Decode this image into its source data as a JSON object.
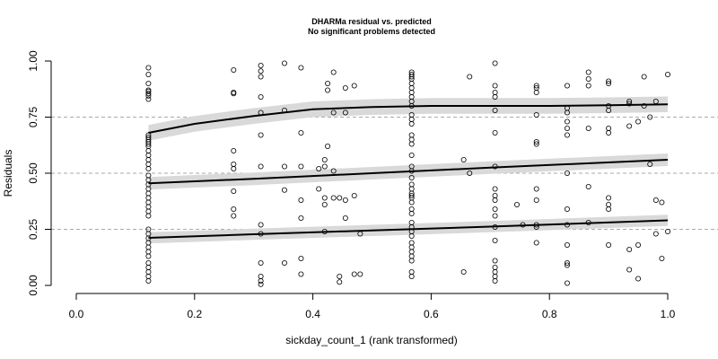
{
  "chart_data": {
    "type": "scatter",
    "title": "DHARMa residual vs. predicted",
    "subtitle": "No significant problems detected",
    "xlabel": "sickday_count_1 (rank transformed)",
    "ylabel": "Residuals",
    "xlim": [
      0.0,
      1.0
    ],
    "ylim": [
      0.0,
      1.0
    ],
    "x_ticks": [
      {
        "value": 0.0,
        "label": "0.0"
      },
      {
        "value": 0.2,
        "label": "0.2"
      },
      {
        "value": 0.4,
        "label": "0.4"
      },
      {
        "value": 0.6,
        "label": "0.6"
      },
      {
        "value": 0.8,
        "label": "0.8"
      },
      {
        "value": 1.0,
        "label": "1.0"
      }
    ],
    "y_ticks": [
      {
        "value": 0.0,
        "label": "0.00"
      },
      {
        "value": 0.25,
        "label": "0.25"
      },
      {
        "value": 0.5,
        "label": "0.50"
      },
      {
        "value": 0.75,
        "label": "0.75"
      },
      {
        "value": 1.0,
        "label": "1.00"
      }
    ],
    "reference_lines_y": [
      0.25,
      0.5,
      0.75
    ],
    "colors": {
      "points": "#000000",
      "outlier": "#e0506e",
      "band": "#d9d9d9",
      "reference": "#aaaaaa"
    },
    "outliers": [
      {
        "x": 0.266,
        "y": 1.0
      }
    ],
    "quantile_lines": [
      {
        "quantile": 0.75,
        "points": [
          [
            0.122,
            0.68
          ],
          [
            0.2,
            0.72
          ],
          [
            0.3,
            0.755
          ],
          [
            0.4,
            0.785
          ],
          [
            0.5,
            0.795
          ],
          [
            0.6,
            0.8
          ],
          [
            0.7,
            0.8
          ],
          [
            0.8,
            0.8
          ],
          [
            0.9,
            0.803
          ],
          [
            1.0,
            0.807
          ]
        ],
        "band": 0.035
      },
      {
        "quantile": 0.5,
        "points": [
          [
            0.122,
            0.455
          ],
          [
            0.3,
            0.475
          ],
          [
            0.5,
            0.5
          ],
          [
            0.7,
            0.525
          ],
          [
            1.0,
            0.56
          ]
        ],
        "band": 0.028
      },
      {
        "quantile": 0.25,
        "points": [
          [
            0.122,
            0.212
          ],
          [
            0.3,
            0.228
          ],
          [
            0.5,
            0.245
          ],
          [
            0.7,
            0.262
          ],
          [
            1.0,
            0.29
          ]
        ],
        "band": 0.025
      }
    ],
    "points": [
      [
        0.122,
        0.97
      ],
      [
        0.122,
        0.94
      ],
      [
        0.122,
        0.9
      ],
      [
        0.122,
        0.87
      ],
      [
        0.122,
        0.865
      ],
      [
        0.122,
        0.855
      ],
      [
        0.122,
        0.845
      ],
      [
        0.122,
        0.83
      ],
      [
        0.122,
        0.67
      ],
      [
        0.122,
        0.66
      ],
      [
        0.122,
        0.65
      ],
      [
        0.122,
        0.64
      ],
      [
        0.122,
        0.63
      ],
      [
        0.122,
        0.62
      ],
      [
        0.122,
        0.6
      ],
      [
        0.122,
        0.58
      ],
      [
        0.122,
        0.56
      ],
      [
        0.122,
        0.54
      ],
      [
        0.122,
        0.52
      ],
      [
        0.122,
        0.49
      ],
      [
        0.122,
        0.47
      ],
      [
        0.122,
        0.45
      ],
      [
        0.122,
        0.43
      ],
      [
        0.122,
        0.41
      ],
      [
        0.122,
        0.39
      ],
      [
        0.122,
        0.37
      ],
      [
        0.122,
        0.35
      ],
      [
        0.122,
        0.33
      ],
      [
        0.122,
        0.31
      ],
      [
        0.122,
        0.25
      ],
      [
        0.122,
        0.23
      ],
      [
        0.122,
        0.21
      ],
      [
        0.122,
        0.19
      ],
      [
        0.122,
        0.17
      ],
      [
        0.122,
        0.15
      ],
      [
        0.122,
        0.13
      ],
      [
        0.122,
        0.1
      ],
      [
        0.122,
        0.08
      ],
      [
        0.122,
        0.06
      ],
      [
        0.122,
        0.04
      ],
      [
        0.122,
        0.02
      ],
      [
        0.266,
        0.96
      ],
      [
        0.266,
        0.86
      ],
      [
        0.266,
        0.855
      ],
      [
        0.266,
        0.6
      ],
      [
        0.266,
        0.54
      ],
      [
        0.266,
        0.52
      ],
      [
        0.266,
        0.42
      ],
      [
        0.266,
        0.34
      ],
      [
        0.266,
        0.31
      ],
      [
        0.312,
        0.98
      ],
      [
        0.312,
        0.955
      ],
      [
        0.312,
        0.93
      ],
      [
        0.312,
        0.84
      ],
      [
        0.312,
        0.77
      ],
      [
        0.312,
        0.67
      ],
      [
        0.312,
        0.53
      ],
      [
        0.312,
        0.27
      ],
      [
        0.312,
        0.23
      ],
      [
        0.312,
        0.1
      ],
      [
        0.312,
        0.04
      ],
      [
        0.312,
        0.02
      ],
      [
        0.312,
        0.005
      ],
      [
        0.352,
        0.99
      ],
      [
        0.352,
        0.78
      ],
      [
        0.352,
        0.53
      ],
      [
        0.352,
        0.425
      ],
      [
        0.352,
        0.1
      ],
      [
        0.38,
        0.97
      ],
      [
        0.38,
        0.68
      ],
      [
        0.38,
        0.53
      ],
      [
        0.38,
        0.38
      ],
      [
        0.38,
        0.3
      ],
      [
        0.38,
        0.12
      ],
      [
        0.38,
        0.05
      ],
      [
        0.41,
        0.43
      ],
      [
        0.41,
        0.52
      ],
      [
        0.42,
        0.56
      ],
      [
        0.42,
        0.53
      ],
      [
        0.42,
        0.39
      ],
      [
        0.42,
        0.36
      ],
      [
        0.42,
        0.24
      ],
      [
        0.425,
        0.9
      ],
      [
        0.425,
        0.87
      ],
      [
        0.425,
        0.62
      ],
      [
        0.435,
        0.95
      ],
      [
        0.435,
        0.77
      ],
      [
        0.435,
        0.51
      ],
      [
        0.435,
        0.39
      ],
      [
        0.445,
        0.39
      ],
      [
        0.445,
        0.04
      ],
      [
        0.445,
        0.015
      ],
      [
        0.455,
        0.88
      ],
      [
        0.455,
        0.77
      ],
      [
        0.455,
        0.38
      ],
      [
        0.455,
        0.3
      ],
      [
        0.47,
        0.89
      ],
      [
        0.47,
        0.4
      ],
      [
        0.47,
        0.05
      ],
      [
        0.48,
        0.05
      ],
      [
        0.48,
        0.23
      ],
      [
        0.567,
        0.95
      ],
      [
        0.567,
        0.94
      ],
      [
        0.567,
        0.93
      ],
      [
        0.567,
        0.92
      ],
      [
        0.567,
        0.9
      ],
      [
        0.567,
        0.88
      ],
      [
        0.567,
        0.86
      ],
      [
        0.567,
        0.84
      ],
      [
        0.567,
        0.82
      ],
      [
        0.567,
        0.8
      ],
      [
        0.567,
        0.76
      ],
      [
        0.567,
        0.74
      ],
      [
        0.567,
        0.72
      ],
      [
        0.567,
        0.67
      ],
      [
        0.567,
        0.65
      ],
      [
        0.567,
        0.63
      ],
      [
        0.567,
        0.58
      ],
      [
        0.567,
        0.53
      ],
      [
        0.567,
        0.51
      ],
      [
        0.567,
        0.48
      ],
      [
        0.567,
        0.45
      ],
      [
        0.567,
        0.43
      ],
      [
        0.567,
        0.41
      ],
      [
        0.567,
        0.4
      ],
      [
        0.567,
        0.39
      ],
      [
        0.567,
        0.37
      ],
      [
        0.567,
        0.34
      ],
      [
        0.567,
        0.32
      ],
      [
        0.567,
        0.28
      ],
      [
        0.567,
        0.26
      ],
      [
        0.567,
        0.24
      ],
      [
        0.567,
        0.22
      ],
      [
        0.567,
        0.19
      ],
      [
        0.567,
        0.17
      ],
      [
        0.567,
        0.15
      ],
      [
        0.567,
        0.13
      ],
      [
        0.567,
        0.11
      ],
      [
        0.567,
        0.06
      ],
      [
        0.567,
        0.04
      ],
      [
        0.655,
        0.06
      ],
      [
        0.655,
        0.56
      ],
      [
        0.665,
        0.93
      ],
      [
        0.665,
        0.5
      ],
      [
        0.708,
        0.99
      ],
      [
        0.708,
        0.89
      ],
      [
        0.708,
        0.86
      ],
      [
        0.708,
        0.84
      ],
      [
        0.708,
        0.78
      ],
      [
        0.708,
        0.68
      ],
      [
        0.708,
        0.53
      ],
      [
        0.708,
        0.43
      ],
      [
        0.708,
        0.4
      ],
      [
        0.708,
        0.38
      ],
      [
        0.708,
        0.34
      ],
      [
        0.708,
        0.31
      ],
      [
        0.708,
        0.26
      ],
      [
        0.708,
        0.2
      ],
      [
        0.708,
        0.11
      ],
      [
        0.708,
        0.08
      ],
      [
        0.708,
        0.06
      ],
      [
        0.708,
        0.04
      ],
      [
        0.708,
        0.02
      ],
      [
        0.745,
        0.36
      ],
      [
        0.755,
        0.27
      ],
      [
        0.778,
        0.89
      ],
      [
        0.778,
        0.88
      ],
      [
        0.778,
        0.86
      ],
      [
        0.778,
        0.76
      ],
      [
        0.778,
        0.64
      ],
      [
        0.778,
        0.63
      ],
      [
        0.778,
        0.43
      ],
      [
        0.778,
        0.38
      ],
      [
        0.778,
        0.27
      ],
      [
        0.778,
        0.26
      ],
      [
        0.778,
        0.19
      ],
      [
        0.83,
        0.89
      ],
      [
        0.83,
        0.79
      ],
      [
        0.83,
        0.77
      ],
      [
        0.83,
        0.73
      ],
      [
        0.83,
        0.7
      ],
      [
        0.83,
        0.67
      ],
      [
        0.83,
        0.5
      ],
      [
        0.83,
        0.34
      ],
      [
        0.83,
        0.27
      ],
      [
        0.83,
        0.18
      ],
      [
        0.83,
        0.1
      ],
      [
        0.83,
        0.09
      ],
      [
        0.83,
        0.01
      ],
      [
        0.866,
        0.95
      ],
      [
        0.866,
        0.92
      ],
      [
        0.866,
        0.89
      ],
      [
        0.866,
        0.7
      ],
      [
        0.866,
        0.44
      ],
      [
        0.866,
        0.28
      ],
      [
        0.9,
        0.91
      ],
      [
        0.9,
        0.9
      ],
      [
        0.9,
        0.8
      ],
      [
        0.9,
        0.78
      ],
      [
        0.9,
        0.7
      ],
      [
        0.9,
        0.68
      ],
      [
        0.9,
        0.39
      ],
      [
        0.9,
        0.36
      ],
      [
        0.9,
        0.34
      ],
      [
        0.9,
        0.18
      ],
      [
        0.935,
        0.82
      ],
      [
        0.935,
        0.81
      ],
      [
        0.935,
        0.71
      ],
      [
        0.935,
        0.16
      ],
      [
        0.935,
        0.07
      ],
      [
        0.95,
        0.73
      ],
      [
        0.95,
        0.18
      ],
      [
        0.95,
        0.03
      ],
      [
        0.96,
        0.93
      ],
      [
        0.96,
        0.8
      ],
      [
        0.97,
        0.75
      ],
      [
        0.97,
        0.54
      ],
      [
        0.98,
        0.82
      ],
      [
        0.98,
        0.38
      ],
      [
        0.98,
        0.23
      ],
      [
        0.99,
        0.37
      ],
      [
        0.99,
        0.12
      ],
      [
        1.0,
        0.94
      ],
      [
        1.0,
        0.24
      ]
    ]
  }
}
